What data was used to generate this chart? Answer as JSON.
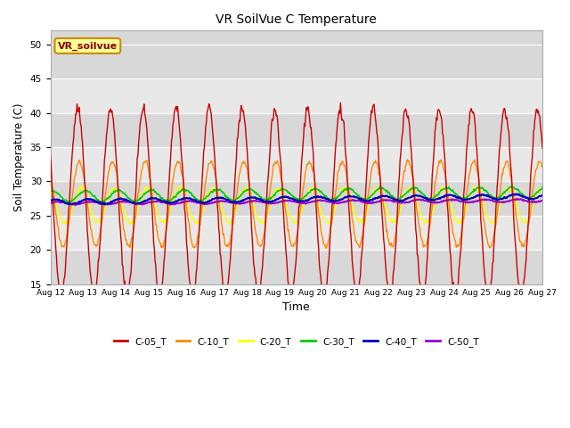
{
  "title": "VR SoilVue C Temperature",
  "xlabel": "Time",
  "ylabel": "Soil Temperature (C)",
  "ylim": [
    15,
    52
  ],
  "yticks": [
    15,
    20,
    25,
    30,
    35,
    40,
    45,
    50
  ],
  "series_colors": {
    "C-05_T": "#cc0000",
    "C-10_T": "#ff8800",
    "C-20_T": "#ffff00",
    "C-30_T": "#00cc00",
    "C-40_T": "#0000bb",
    "C-50_T": "#9900cc"
  },
  "annotation_text": "VR_soilvue",
  "annotation_bg": "#ffff99",
  "annotation_border": "#cc8800",
  "n_days": 15,
  "start_day": 12,
  "band_colors": [
    "#d8d8d8",
    "#e8e8e8"
  ],
  "fig_bg": "#ffffff"
}
